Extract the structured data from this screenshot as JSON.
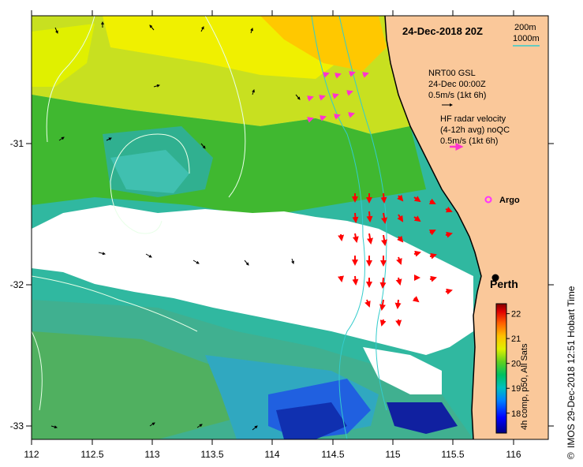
{
  "map": {
    "title": "24-Dec-2018 20Z",
    "depth_legend": {
      "label_200": "200m",
      "label_1000": "1000m",
      "line_color": "#33cccc"
    },
    "gsl_legend": {
      "line1": "NRT00 GSL",
      "line2": "24-Dec 00:00Z",
      "line3": "0.5m/s (1kt 6h)",
      "arrow_color": "#000000"
    },
    "radar_legend": {
      "line1": "HF radar velocity",
      "line2": "(4-12h avg) noQC",
      "line3": "0.5m/s (1kt 6h)",
      "arrow_color": "#ff33cc"
    },
    "argo": {
      "label": "Argo",
      "color": "#ff33ff"
    },
    "city": {
      "label": "Perth"
    },
    "side_text": "IMOS 29-Dec-2018 12:51 Hobart Time",
    "colorbar": {
      "caption": "4h comp, p50, All Sats",
      "ticks": [
        "18",
        "19",
        "20",
        "21",
        "22"
      ],
      "range": [
        17.2,
        22.4
      ],
      "colors": [
        "#000080",
        "#0000ff",
        "#0080ff",
        "#00c0c0",
        "#00c060",
        "#40d020",
        "#a0e000",
        "#ffff00",
        "#ffb000",
        "#ff6000",
        "#e00000",
        "#800000"
      ]
    },
    "x_ticks": [
      "112",
      "112.5",
      "113",
      "113.5",
      "114",
      "114.5",
      "115",
      "115.5",
      "116"
    ],
    "y_ticks": [
      "-31",
      "-32",
      "-33"
    ],
    "land_color": "#fac89a",
    "sst_colors": {
      "warm": "#f0f000",
      "warm_orange": "#ffc800",
      "yellow_green": "#a0e000",
      "green": "#30b830",
      "teal": "#20a890",
      "cyan": "#30b8c8",
      "blue": "#2060e0",
      "deep_blue": "#1020a0"
    }
  }
}
